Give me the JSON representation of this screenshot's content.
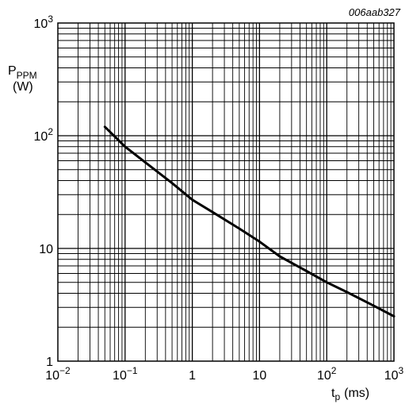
{
  "chart_data": {
    "type": "line",
    "figure_id": "006aab327",
    "ylabel": {
      "main": "P",
      "sub": "PPM",
      "unit": "(W)"
    },
    "xlabel": {
      "main": "t",
      "sub": "p",
      "unit": "(ms)"
    },
    "xscale": "log",
    "yscale": "log",
    "xlim": [
      0.01,
      1000
    ],
    "ylim": [
      1,
      1000
    ],
    "grid": true,
    "x_ticks": [
      {
        "value": 0.01,
        "base": "10",
        "exp": "−2"
      },
      {
        "value": 0.1,
        "base": "10",
        "exp": "−1"
      },
      {
        "value": 1,
        "base": "1",
        "exp": ""
      },
      {
        "value": 10,
        "base": "10",
        "exp": ""
      },
      {
        "value": 100,
        "base": "10",
        "exp": "2"
      },
      {
        "value": 1000,
        "base": "10",
        "exp": "3"
      }
    ],
    "y_ticks": [
      {
        "value": 1,
        "base": "1",
        "exp": ""
      },
      {
        "value": 10,
        "base": "10",
        "exp": ""
      },
      {
        "value": 100,
        "base": "10",
        "exp": "2"
      },
      {
        "value": 1000,
        "base": "10",
        "exp": "3"
      }
    ],
    "series": [
      {
        "x": [
          0.05,
          0.1,
          0.2,
          0.5,
          1,
          2,
          5,
          10,
          20,
          50,
          100,
          200,
          500,
          1000
        ],
        "y": [
          120,
          80,
          58,
          38,
          27,
          21,
          15,
          11.5,
          8.5,
          6.3,
          5,
          4.1,
          3.1,
          2.5
        ]
      }
    ]
  }
}
